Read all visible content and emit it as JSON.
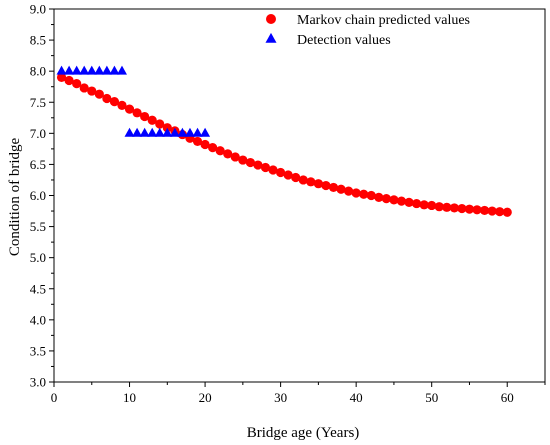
{
  "chart_data": {
    "type": "scatter",
    "xlabel": "Bridge age (Years)",
    "ylabel": "Condition of bridge",
    "xlim": [
      0,
      65
    ],
    "ylim": [
      3.0,
      9.0
    ],
    "x_ticks": [
      "0",
      "10",
      "20",
      "30",
      "40",
      "50",
      "60"
    ],
    "y_ticks": [
      "3.0",
      "3.5",
      "4.0",
      "4.5",
      "5.0",
      "5.5",
      "6.0",
      "6.5",
      "7.0",
      "7.5",
      "8.0",
      "8.5",
      "9.0"
    ],
    "legend_position": "top-right",
    "grid": false,
    "series": [
      {
        "name": "Markov chain predicted values",
        "marker": "circle",
        "color": "#ff0000",
        "x": [
          1,
          2,
          3,
          4,
          5,
          6,
          7,
          8,
          9,
          10,
          11,
          12,
          13,
          14,
          15,
          16,
          17,
          18,
          19,
          20,
          21,
          22,
          23,
          24,
          25,
          26,
          27,
          28,
          29,
          30,
          31,
          32,
          33,
          34,
          35,
          36,
          37,
          38,
          39,
          40,
          41,
          42,
          43,
          44,
          45,
          46,
          47,
          48,
          49,
          50,
          51,
          52,
          53,
          54,
          55,
          56,
          57,
          58,
          59,
          60
        ],
        "y": [
          7.9,
          7.85,
          7.8,
          7.73,
          7.68,
          7.63,
          7.56,
          7.51,
          7.45,
          7.39,
          7.33,
          7.27,
          7.21,
          7.15,
          7.09,
          7.04,
          6.98,
          6.92,
          6.87,
          6.82,
          6.77,
          6.72,
          6.67,
          6.62,
          6.57,
          6.53,
          6.49,
          6.45,
          6.41,
          6.37,
          6.33,
          6.29,
          6.25,
          6.22,
          6.19,
          6.16,
          6.13,
          6.1,
          6.07,
          6.04,
          6.02,
          6.0,
          5.97,
          5.95,
          5.93,
          5.91,
          5.89,
          5.87,
          5.85,
          5.84,
          5.82,
          5.81,
          5.8,
          5.79,
          5.78,
          5.77,
          5.76,
          5.75,
          5.74,
          5.73
        ]
      },
      {
        "name": "Detection values",
        "marker": "triangle",
        "color": "#0000ff",
        "x": [
          1,
          2,
          3,
          4,
          5,
          6,
          7,
          8,
          9,
          10,
          11,
          12,
          13,
          14,
          15,
          16,
          17,
          18,
          19,
          20
        ],
        "y": [
          8.0,
          8.0,
          8.0,
          8.0,
          8.0,
          8.0,
          8.0,
          8.0,
          8.0,
          7.0,
          7.0,
          7.0,
          7.0,
          7.0,
          7.0,
          7.0,
          7.0,
          7.0,
          7.0,
          7.0
        ]
      }
    ]
  }
}
